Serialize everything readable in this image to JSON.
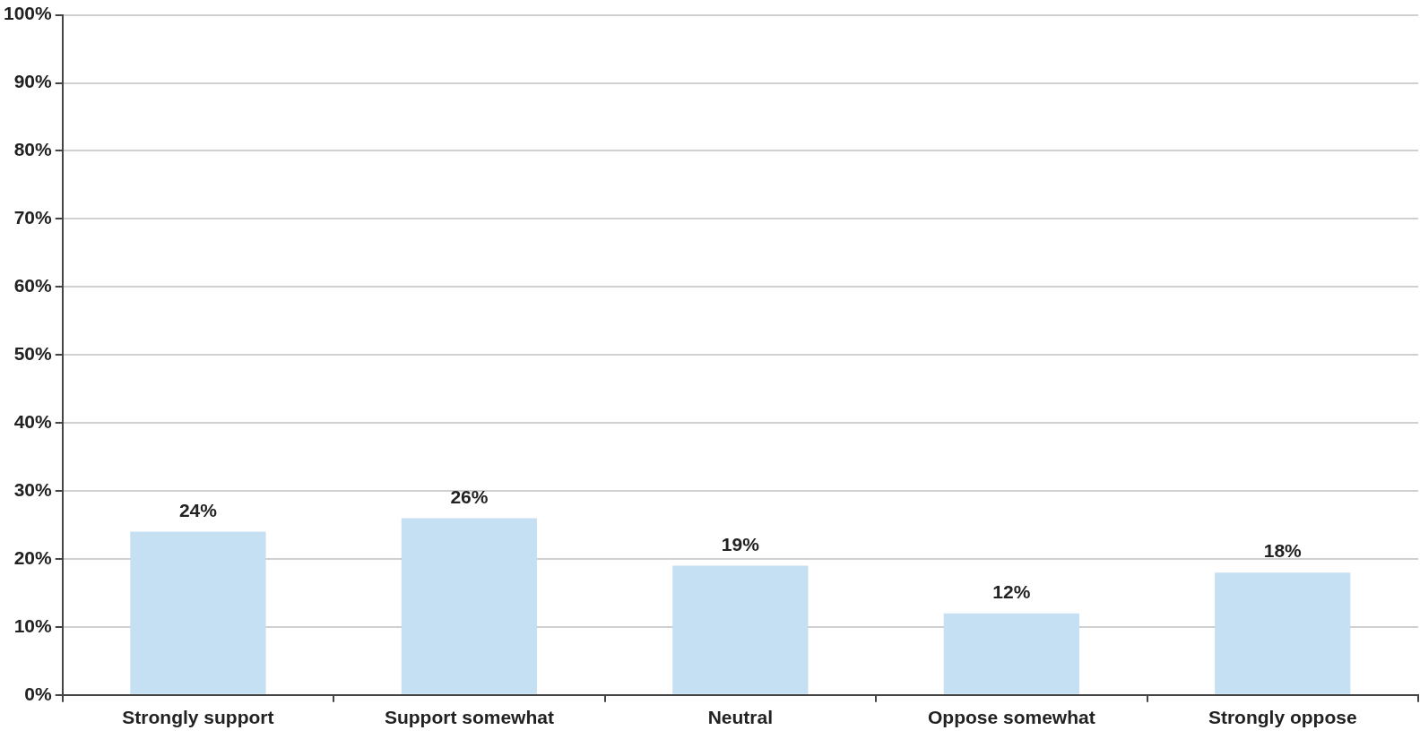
{
  "chart_data": {
    "type": "bar",
    "categories": [
      "Strongly support",
      "Support somewhat",
      "Neutral",
      "Oppose somewhat",
      "Strongly oppose"
    ],
    "values": [
      24,
      26,
      19,
      12,
      18
    ],
    "color": "#c5dff3",
    "ylim": [
      0,
      100
    ],
    "yticks": [
      {
        "value": 0,
        "label": "0%"
      },
      {
        "value": 10,
        "label": "10%"
      },
      {
        "value": 20,
        "label": "20%"
      },
      {
        "value": 30,
        "label": "30%"
      },
      {
        "value": 40,
        "label": "40%"
      },
      {
        "value": 50,
        "label": "50%"
      },
      {
        "value": 60,
        "label": "60%"
      },
      {
        "value": 70,
        "label": "70%"
      },
      {
        "value": 80,
        "label": "80%"
      },
      {
        "value": 90,
        "label": "90%"
      },
      {
        "value": 100,
        "label": "100%"
      }
    ],
    "value_labels": [
      "24%",
      "26%",
      "19%",
      "12%",
      "18%"
    ],
    "grid": "y",
    "legend": false
  }
}
